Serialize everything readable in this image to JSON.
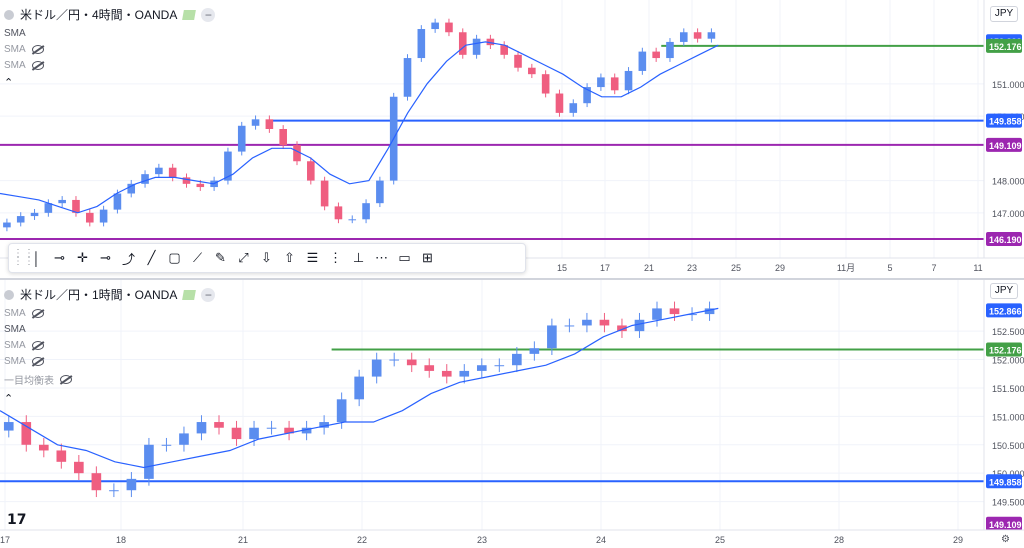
{
  "chart_data": [
    {
      "type": "candlestick",
      "title": "米ドル／円・4時間・OANDA",
      "currency": "JPY",
      "y_ticks": [
        147.0,
        148.0,
        150.0,
        151.0
      ],
      "price_labels": [
        {
          "value": 152.322,
          "text": "152.322",
          "color": "#2962ff"
        },
        {
          "value": 152.176,
          "text": "152.176",
          "color": "#43a047"
        },
        {
          "value": 149.858,
          "text": "149.858",
          "color": "#2962ff"
        },
        {
          "value": 149.109,
          "text": "149.109",
          "color": "#9c27b0"
        },
        {
          "value": 146.19,
          "text": "146.190",
          "color": "#9c27b0"
        }
      ],
      "hlines": [
        {
          "value": 152.176,
          "color": "#43a047",
          "start_fraction": 0.672
        },
        {
          "value": 149.858,
          "color": "#2962ff",
          "start_fraction": 0.275
        },
        {
          "value": 149.109,
          "color": "#9c27b0",
          "start_fraction": 0
        },
        {
          "value": 146.19,
          "color": "#9c27b0",
          "start_fraction": 0
        }
      ],
      "x_tick_labels": [
        "15",
        "17",
        "21",
        "23",
        "25",
        "29",
        "11月",
        "5",
        "7",
        "11"
      ],
      "indicators": [
        "SMA",
        "SMA",
        "SMA"
      ],
      "close_path": [
        146.7,
        146.9,
        147.0,
        147.3,
        147.4,
        147.0,
        146.7,
        147.1,
        147.6,
        147.9,
        148.2,
        148.4,
        148.1,
        147.9,
        147.8,
        148.0,
        148.9,
        149.7,
        149.9,
        149.6,
        149.1,
        148.6,
        148.0,
        147.2,
        146.8,
        146.8,
        147.3,
        148.0,
        150.6,
        151.8,
        152.7,
        152.9,
        152.6,
        151.9,
        152.4,
        152.2,
        151.9,
        151.5,
        151.3,
        150.7,
        150.1,
        150.4,
        150.9,
        151.2,
        150.8,
        151.4,
        152.0,
        151.8,
        152.3,
        152.6,
        152.4,
        152.6
      ],
      "sma_path": [
        147.6,
        147.5,
        147.4,
        147.2,
        147.0,
        147.2,
        147.6,
        147.9,
        148.1,
        148.1,
        148.0,
        147.9,
        148.2,
        148.7,
        149.0,
        149.0,
        148.7,
        148.2,
        147.9,
        148.0,
        149.0,
        150.1,
        151.0,
        151.7,
        152.2,
        152.3,
        152.2,
        151.9,
        151.6,
        151.3,
        150.9,
        150.6,
        150.6,
        150.9,
        151.3,
        151.6,
        151.9,
        152.2
      ]
    },
    {
      "type": "candlestick",
      "title": "米ドル／円・1時間・OANDA",
      "currency": "JPY",
      "y_ticks": [
        149.5,
        150.0,
        150.5,
        151.0,
        151.5,
        152.0,
        152.5
      ],
      "price_labels": [
        {
          "value": 152.866,
          "text": "152.866",
          "color": "#2962ff"
        },
        {
          "value": 152.176,
          "text": "152.176",
          "color": "#43a047"
        },
        {
          "value": 149.858,
          "text": "149.858",
          "color": "#2962ff"
        },
        {
          "value": 149.109,
          "text": "149.109",
          "color": "#9c27b0"
        }
      ],
      "hlines": [
        {
          "value": 152.176,
          "color": "#43a047",
          "start_fraction": 0.337
        },
        {
          "value": 149.858,
          "color": "#2962ff",
          "start_fraction": 0
        }
      ],
      "x_tick_labels": [
        "17",
        "18",
        "21",
        "22",
        "23",
        "24",
        "25",
        "28",
        "29"
      ],
      "indicators": [
        "SMA",
        "SMA",
        "SMA",
        "SMA",
        "一目均衡表"
      ],
      "close_path": [
        150.9,
        150.5,
        150.4,
        150.2,
        150.0,
        149.7,
        149.7,
        149.9,
        150.5,
        150.5,
        150.7,
        150.9,
        150.8,
        150.6,
        150.8,
        150.8,
        150.7,
        150.8,
        150.9,
        151.3,
        151.7,
        152.0,
        152.0,
        151.9,
        151.8,
        151.7,
        151.8,
        151.9,
        151.9,
        152.1,
        152.2,
        152.6,
        152.6,
        152.7,
        152.6,
        152.5,
        152.7,
        152.9,
        152.8,
        152.8,
        152.9
      ],
      "sma_path": [
        151.1,
        150.8,
        150.5,
        150.4,
        150.2,
        150.1,
        150.2,
        150.3,
        150.4,
        150.6,
        150.7,
        150.8,
        150.9,
        150.9,
        151.1,
        151.4,
        151.6,
        151.7,
        151.8,
        151.9,
        152.1,
        152.4,
        152.6,
        152.7,
        152.8,
        152.9
      ]
    }
  ],
  "legend": {
    "top_title": "米ドル／円・4時間・OANDA",
    "top_indicators": [
      "SMA",
      "SMA",
      "SMA"
    ],
    "bottom_title": "米ドル／円・1時間・OANDA",
    "bottom_indicators": [
      "SMA",
      "SMA",
      "SMA",
      "SMA",
      "一目均衡表"
    ]
  },
  "currency_badge": "JPY",
  "toolbar": {
    "tools": [
      "vertical-line-icon",
      "horizontal-ray-icon",
      "crosshair-icon",
      "horizontal-line-icon",
      "path-icon",
      "trend-line-icon",
      "rectangle-icon",
      "info-line-icon",
      "brush-icon",
      "extended-line-icon",
      "arrow-down-icon",
      "arrow-up-icon",
      "fib-retracement-icon",
      "parallel-channel-icon",
      "date-range-icon",
      "price-range-icon",
      "comment-icon",
      "zoom-region-icon"
    ]
  },
  "colors": {
    "up": "#5b8def",
    "down": "#ef5e80",
    "sma": "#2962ff",
    "green": "#43a047",
    "purple": "#9c27b0",
    "blue": "#2962ff",
    "orange": "#f59a23"
  }
}
